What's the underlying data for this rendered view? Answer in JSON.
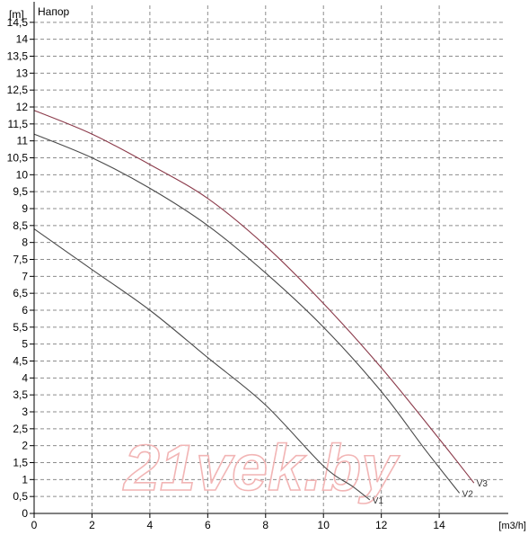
{
  "chart_data": {
    "type": "line",
    "title": "Напор",
    "ylabel": "[m]",
    "xlabel": "[m3/h]",
    "xlim": [
      0,
      16.2
    ],
    "ylim": [
      0,
      15
    ],
    "x_ticks": [
      0,
      2,
      4,
      6,
      8,
      10,
      12,
      14
    ],
    "y_ticks": [
      0,
      0.5,
      1,
      1.5,
      2,
      2.5,
      3,
      3.5,
      4,
      4.5,
      5,
      5.5,
      6,
      6.5,
      7,
      7.5,
      8,
      8.5,
      9,
      9.5,
      10,
      10.5,
      11,
      11.5,
      12,
      12.5,
      13,
      13.5,
      14,
      14.5
    ],
    "y_tick_labels": [
      "0",
      "0,5",
      "1",
      "1,5",
      "2",
      "2,5",
      "3",
      "3,5",
      "4",
      "4,5",
      "5",
      "5,5",
      "6",
      "6,5",
      "7",
      "7,5",
      "8",
      "8,5",
      "9",
      "9,5",
      "10",
      "10,5",
      "11",
      "11,5",
      "12",
      "12,5",
      "13",
      "13,5",
      "14",
      "14,5"
    ],
    "grid": true,
    "watermark": "21vek.by",
    "series": [
      {
        "name": "V1",
        "color": "#4a4a4a",
        "x": [
          0,
          2,
          4,
          6,
          8,
          10,
          11.0,
          11.6
        ],
        "y": [
          8.4,
          7.2,
          6.0,
          4.6,
          3.2,
          1.4,
          0.8,
          0.4
        ]
      },
      {
        "name": "V2",
        "color": "#4a4a4a",
        "x": [
          0,
          2,
          4,
          6,
          8,
          10,
          12,
          13.5,
          14.7
        ],
        "y": [
          11.2,
          10.5,
          9.6,
          8.5,
          7.1,
          5.5,
          3.6,
          1.9,
          0.6
        ]
      },
      {
        "name": "V3",
        "color": "#8b3a4a",
        "x": [
          0,
          2,
          4,
          6,
          8,
          10,
          12,
          14,
          15.2
        ],
        "y": [
          11.9,
          11.2,
          10.3,
          9.3,
          7.9,
          6.2,
          4.3,
          2.2,
          0.9
        ]
      }
    ]
  }
}
